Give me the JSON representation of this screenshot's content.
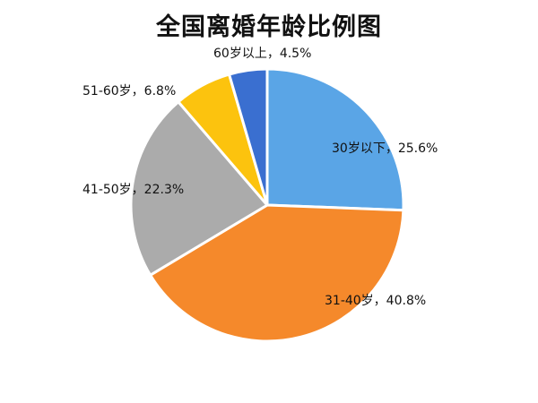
{
  "chart_data": {
    "type": "pie",
    "title": "全国离婚年龄比例图",
    "slices": [
      {
        "category": "30岁以下",
        "value": 25.6,
        "label": "30岁以下，25.6%",
        "color": "#5aa5e6"
      },
      {
        "category": "31-40岁",
        "value": 40.8,
        "label": "31-40岁，40.8%",
        "color": "#f5892b"
      },
      {
        "category": "41-50岁",
        "value": 22.3,
        "label": "41-50岁，22.3%",
        "color": "#ababab"
      },
      {
        "category": "51-60岁",
        "value": 6.8,
        "label": "51-60岁，6.8%",
        "color": "#fcc30e"
      },
      {
        "category": "60岁以上",
        "value": 4.5,
        "label": "60岁以上，4.5%",
        "color": "#3a6fd0"
      }
    ],
    "legend": "none"
  }
}
